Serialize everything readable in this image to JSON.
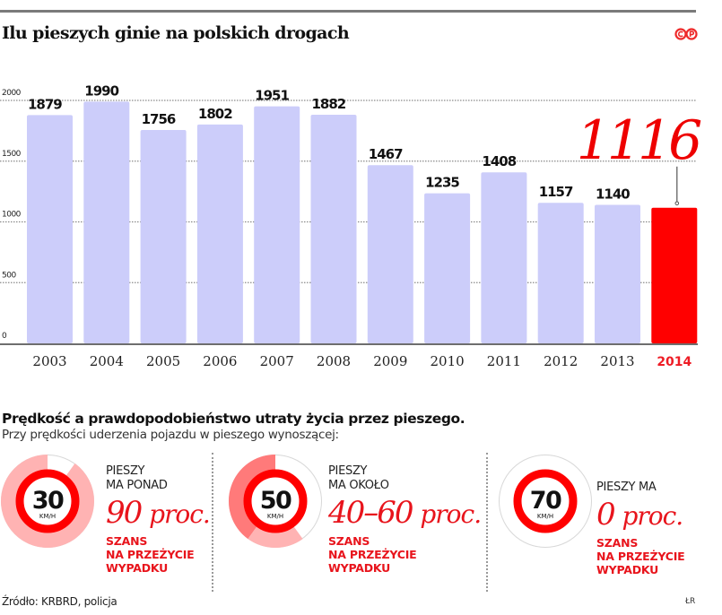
{
  "header": {
    "title": "Ilu pieszych ginie na polskich drogach",
    "logo_icon": "cc-by-logo-icon"
  },
  "colors": {
    "bar": "#cccdfa",
    "bar_highlight": "#ff0000",
    "accent": "#e8141c",
    "grid": "#8a8a8a",
    "axis": "#6e6e6e",
    "ring_red": "#ff0000",
    "light_pink": "#ffb3b3",
    "mid_pink": "#ff7a7a"
  },
  "chart_data": {
    "type": "bar",
    "title": "Ilu pieszych ginie na polskich drogach",
    "xlabel": "",
    "ylabel": "",
    "categories": [
      "2003",
      "2004",
      "2005",
      "2006",
      "2007",
      "2008",
      "2009",
      "2010",
      "2011",
      "2012",
      "2013",
      "2014"
    ],
    "values": [
      1879,
      1990,
      1756,
      1802,
      1951,
      1882,
      1467,
      1235,
      1408,
      1157,
      1140,
      1116
    ],
    "value_labels": [
      "1879",
      "1990",
      "1756",
      "1802",
      "1951",
      "1882",
      "1467",
      "1235",
      "1408",
      "1157",
      "1140",
      "1116"
    ],
    "highlight_index": 11,
    "highlight_annotation": "1116",
    "ylim": [
      0,
      2000
    ],
    "yticks": [
      0,
      500,
      1000,
      1500,
      2000
    ],
    "ytick_labels": [
      "0",
      "500",
      "1000",
      "1500",
      "2000"
    ],
    "grid": true,
    "legend": "none"
  },
  "speed_section": {
    "title": "Prędkość a prawdopodobieństwo utraty życia przez pieszego.",
    "subtitle": "Przy prędkości uderzenia pojazdu w pieszego wynoszącej:",
    "groups": [
      {
        "speed": "30",
        "unit": "KM/H",
        "lead_lines": [
          "PIESZY",
          "MA PONAD"
        ],
        "percent": "90",
        "percent_unit": "proc.",
        "chance_lines": [
          "SZANS",
          "NA PRZEŻYCIE",
          "WYPADKU"
        ],
        "survival_min": 0.9,
        "survival_max": 0.9
      },
      {
        "speed": "50",
        "unit": "KM/H",
        "lead_lines": [
          "PIESZY",
          "MA OKOŁO"
        ],
        "percent": "40–60",
        "percent_unit": "proc.",
        "chance_lines": [
          "SZANS",
          "NA PRZEŻYCIE",
          "WYPADKU"
        ],
        "survival_min": 0.4,
        "survival_max": 0.6
      },
      {
        "speed": "70",
        "unit": "KM/H",
        "lead_lines": [
          "PIESZY MA"
        ],
        "percent": "0",
        "percent_unit": "proc.",
        "chance_lines": [
          "SZANS",
          "NA PRZEŻYCIE",
          "WYPADKU"
        ],
        "survival_min": 0,
        "survival_max": 0
      }
    ]
  },
  "footer": {
    "source": "Źródło:  KRBRD, policja",
    "author": "ŁR"
  }
}
